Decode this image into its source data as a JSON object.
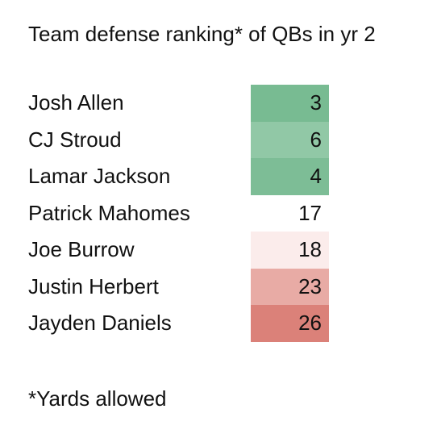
{
  "title": "Team defense ranking* of QBs in yr 2",
  "footnote": "*Yards allowed",
  "rows": [
    {
      "name": "Josh Allen",
      "value": "3",
      "color": "#78bb92"
    },
    {
      "name": "CJ Stroud",
      "value": "6",
      "color": "#91c8a6"
    },
    {
      "name": "Lamar Jackson",
      "value": "4",
      "color": "#7dbd96"
    },
    {
      "name": "Patrick Mahomes",
      "value": "17",
      "color": "#ffffff"
    },
    {
      "name": "Joe Burrow",
      "value": "18",
      "color": "#fbeceb"
    },
    {
      "name": "Justin Herbert",
      "value": "23",
      "color": "#e8aba5"
    },
    {
      "name": "Jayden Daniels",
      "value": "26",
      "color": "#db8179"
    }
  ]
}
